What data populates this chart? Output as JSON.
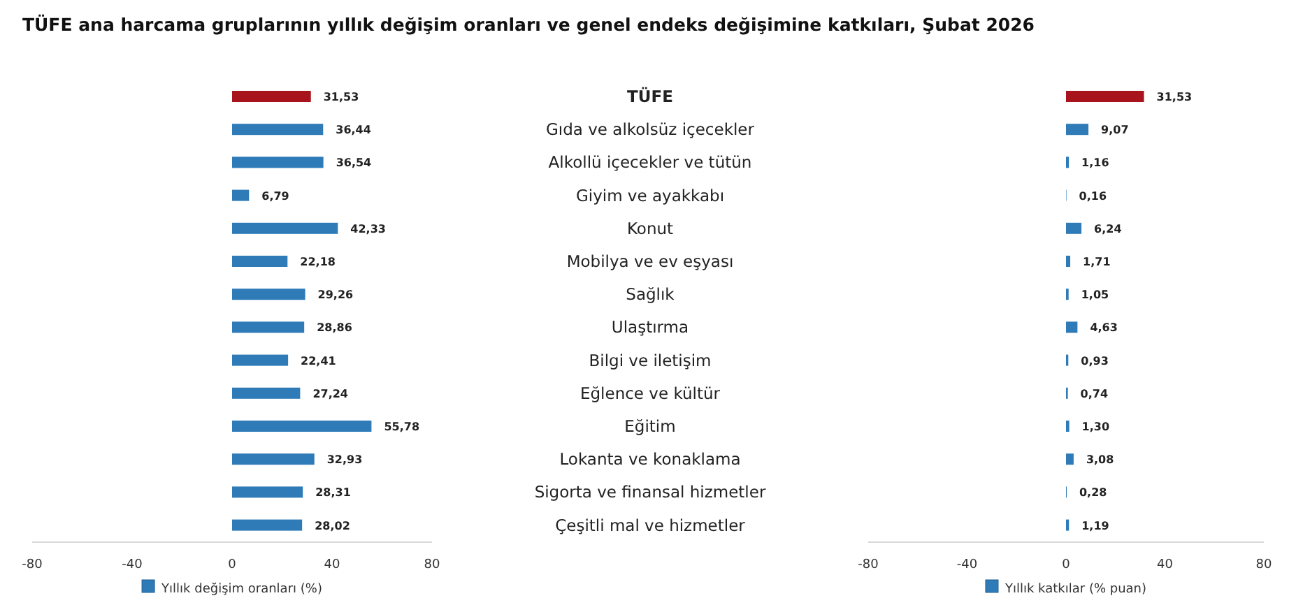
{
  "chart_data": [
    {
      "type": "bar",
      "orientation": "horizontal",
      "title": "TÜFE ana harcama gruplarının yıllık değişim oranları ve genel endeks değişimine katkıları, Şubat 2026",
      "categories": [
        "TÜFE",
        "Gıda ve alkolsüz içecekler",
        "Alkollü içecekler ve tütün",
        "Giyim ve ayakkabı",
        "Konut",
        "Mobilya ve ev eşyası",
        "Sağlık",
        "Ulaştırma",
        "Bilgi ve iletişim",
        "Eğlence ve kültür",
        "Eğitim",
        "Lokanta ve konaklama",
        "Sigorta ve finansal hizmetler",
        "Çeşitli mal ve hizmetler"
      ],
      "series": [
        {
          "name": "Yıllık değişim oranları (%)",
          "color": "#2e7bb8",
          "colors": [
            "#a8141c",
            "#2e7bb8",
            "#2e7bb8",
            "#2e7bb8",
            "#2e7bb8",
            "#2e7bb8",
            "#2e7bb8",
            "#2e7bb8",
            "#2e7bb8",
            "#2e7bb8",
            "#2e7bb8",
            "#2e7bb8",
            "#2e7bb8",
            "#2e7bb8"
          ],
          "values": [
            31.53,
            36.44,
            36.54,
            6.79,
            42.33,
            22.18,
            29.26,
            28.86,
            22.41,
            27.24,
            55.78,
            32.93,
            28.31,
            28.02
          ],
          "value_labels": [
            "31,53",
            "36,44",
            "36,54",
            "6,79",
            "42,33",
            "22,18",
            "29,26",
            "28,86",
            "22,41",
            "27,24",
            "55,78",
            "32,93",
            "28,31",
            "28,02"
          ]
        }
      ],
      "xlim": [
        -80,
        80
      ],
      "xticks": [
        -80,
        -40,
        0,
        40,
        80
      ],
      "legend": "bottom",
      "grid": false
    },
    {
      "type": "bar",
      "orientation": "horizontal",
      "categories": [
        null,
        null,
        null,
        null,
        null,
        null,
        null,
        null,
        null,
        null,
        null,
        null,
        null,
        null
      ],
      "series": [
        {
          "name": "Yıllık katkılar (% puan)",
          "color": "#2e7bb8",
          "colors": [
            "#a8141c",
            "#2e7bb8",
            "#2e7bb8",
            "#2e7bb8",
            "#2e7bb8",
            "#2e7bb8",
            "#2e7bb8",
            "#2e7bb8",
            "#2e7bb8",
            "#2e7bb8",
            "#2e7bb8",
            "#2e7bb8",
            "#2e7bb8",
            "#2e7bb8"
          ],
          "values": [
            31.53,
            9.07,
            1.16,
            0.16,
            6.24,
            1.71,
            1.05,
            4.63,
            0.93,
            0.74,
            1.3,
            3.08,
            0.28,
            1.19
          ],
          "value_labels": [
            "31,53",
            "9,07",
            "1,16",
            "0,16",
            "6,24",
            "1,71",
            "1,05",
            "4,63",
            "0,93",
            "0,74",
            "1,30",
            "3,08",
            "0,28",
            "1,19"
          ]
        }
      ],
      "xlim": [
        -80,
        80
      ],
      "xticks": [
        -80,
        -40,
        0,
        40,
        80
      ],
      "legend": "bottom",
      "grid": false,
      "tick_labels": "x"
    }
  ]
}
